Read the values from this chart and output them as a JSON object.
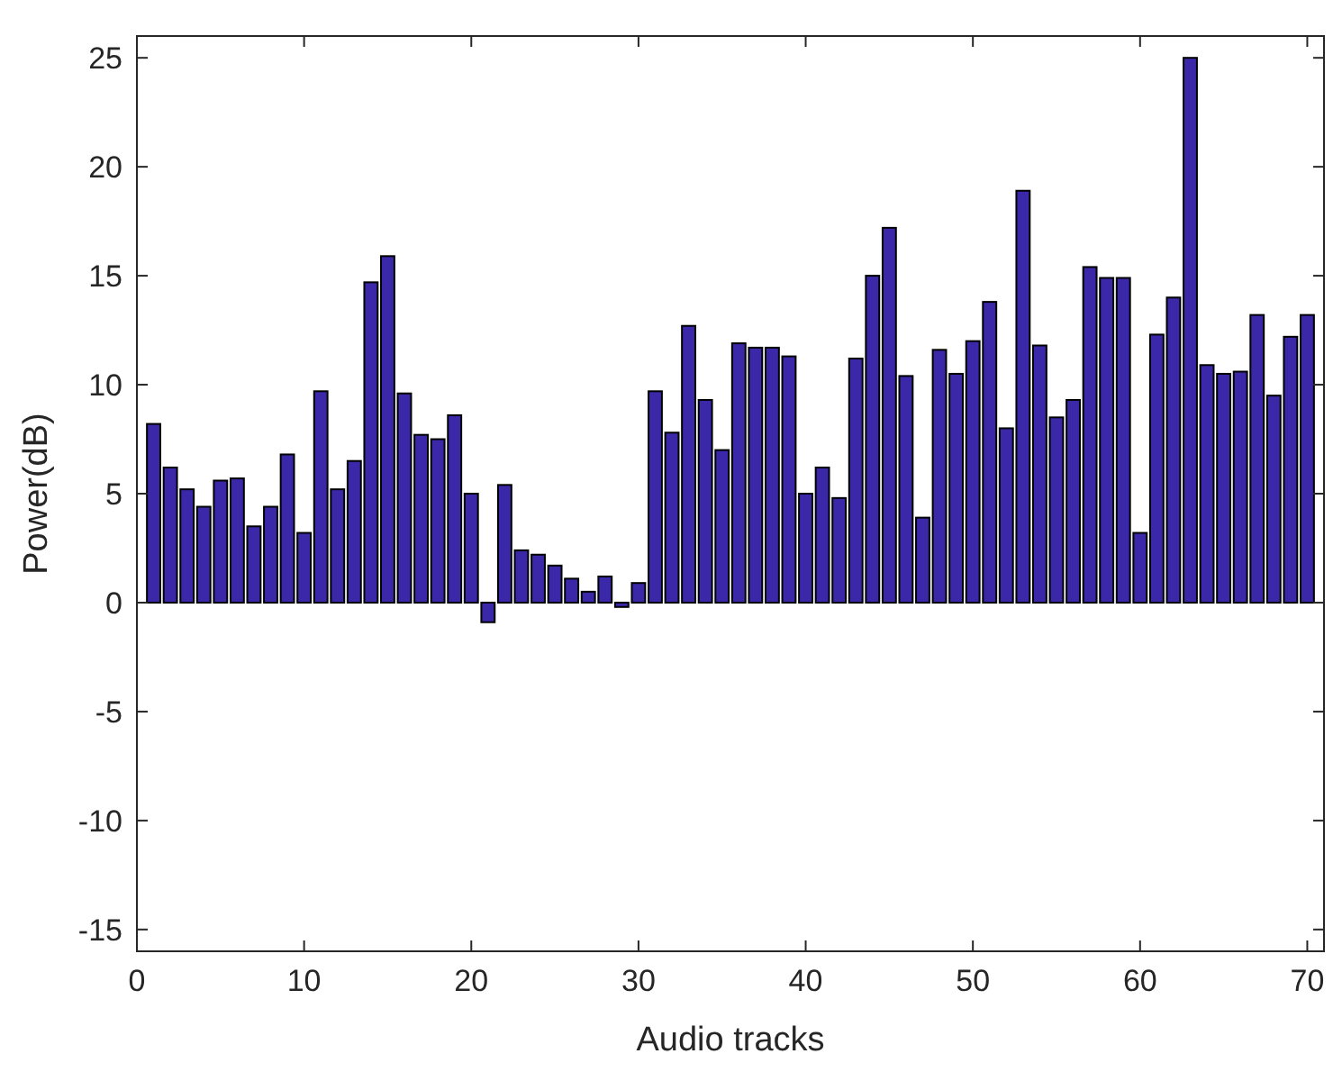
{
  "chart_data": {
    "type": "bar",
    "xlabel": "Audio tracks",
    "ylabel": "Power(dB)",
    "x": [
      1,
      2,
      3,
      4,
      5,
      6,
      7,
      8,
      9,
      10,
      11,
      12,
      13,
      14,
      15,
      16,
      17,
      18,
      19,
      20,
      21,
      22,
      23,
      24,
      25,
      26,
      27,
      28,
      29,
      30,
      31,
      32,
      33,
      34,
      35,
      36,
      37,
      38,
      39,
      40,
      41,
      42,
      43,
      44,
      45,
      46,
      47,
      48,
      49,
      50,
      51,
      52,
      53,
      54,
      55,
      56,
      57,
      58,
      59,
      60,
      61,
      62,
      63,
      64,
      65,
      66,
      67,
      68,
      69,
      70
    ],
    "values": [
      8.2,
      6.2,
      5.2,
      4.4,
      5.6,
      5.7,
      3.5,
      4.4,
      6.8,
      3.2,
      9.7,
      5.2,
      6.5,
      14.7,
      15.9,
      9.6,
      7.7,
      7.5,
      8.6,
      5.0,
      -0.9,
      5.4,
      2.4,
      2.2,
      1.7,
      1.1,
      0.5,
      1.2,
      -0.2,
      0.9,
      9.7,
      7.8,
      12.7,
      9.3,
      7.0,
      11.9,
      11.7,
      11.7,
      11.3,
      5.0,
      6.2,
      4.8,
      11.2,
      15.0,
      17.2,
      10.4,
      3.9,
      11.6,
      10.5,
      12.0,
      13.8,
      8.0,
      18.9,
      11.8,
      8.5,
      9.3,
      15.4,
      14.9,
      14.9,
      3.2,
      12.3,
      14.0,
      25.0,
      10.9,
      10.5,
      10.6,
      13.2,
      9.5,
      12.2,
      13.2
    ],
    "color": "#3a28a8",
    "xlim": [
      0,
      71
    ],
    "xticks": [
      0,
      10,
      20,
      30,
      40,
      50,
      60,
      70
    ],
    "ylim": [
      -16,
      26
    ],
    "yticks": [
      -15,
      -10,
      -5,
      0,
      5,
      10,
      15,
      20,
      25
    ],
    "grid": false
  }
}
